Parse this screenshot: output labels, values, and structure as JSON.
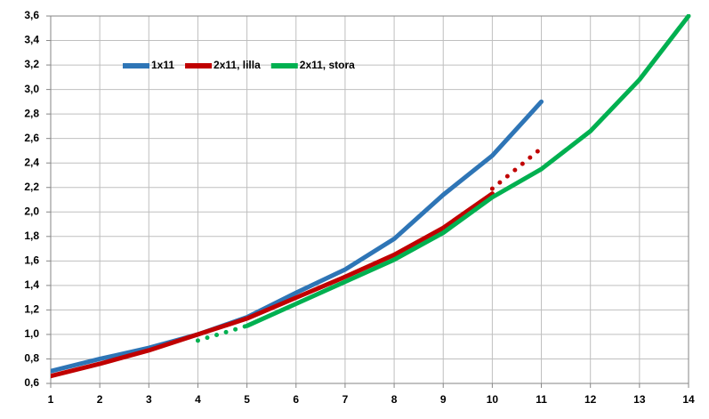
{
  "chart_data": {
    "type": "line",
    "x": [
      1,
      2,
      3,
      4,
      5,
      6,
      7,
      8,
      9,
      10,
      11,
      12,
      13,
      14
    ],
    "xlim": [
      1,
      14
    ],
    "xticks": [
      1,
      2,
      3,
      4,
      5,
      6,
      7,
      8,
      9,
      10,
      11,
      12,
      13,
      14
    ],
    "ylim": [
      0.6,
      3.6
    ],
    "yticks": [
      {
        "value": 0.6,
        "label": "0,6"
      },
      {
        "value": 0.8,
        "label": "0,8"
      },
      {
        "value": 1.0,
        "label": "1,0"
      },
      {
        "value": 1.2,
        "label": "1,2"
      },
      {
        "value": 1.4,
        "label": "1,4"
      },
      {
        "value": 1.6,
        "label": "1,6"
      },
      {
        "value": 1.8,
        "label": "1,8"
      },
      {
        "value": 2.0,
        "label": "2,0"
      },
      {
        "value": 2.2,
        "label": "2,2"
      },
      {
        "value": 2.4,
        "label": "2,4"
      },
      {
        "value": 2.6,
        "label": "2,6"
      },
      {
        "value": 2.8,
        "label": "2,8"
      },
      {
        "value": 3.0,
        "label": "3,0"
      },
      {
        "value": 3.2,
        "label": "3,2"
      },
      {
        "value": 3.4,
        "label": "3,4"
      },
      {
        "value": 3.6,
        "label": "3,6"
      }
    ],
    "grid": true,
    "legend": "upper left",
    "series": [
      {
        "name": "1x11",
        "color": "#2e75b6",
        "dash": "solid",
        "values": [
          0.7,
          0.8,
          0.89,
          1.0,
          1.14,
          1.34,
          1.53,
          1.78,
          2.14,
          2.46,
          2.9,
          null,
          null,
          null
        ]
      },
      {
        "name": "2x11, lilla",
        "color": "#c00000",
        "dash": "solid",
        "values": [
          0.66,
          0.76,
          0.87,
          1.0,
          1.13,
          1.3,
          1.47,
          1.65,
          1.87,
          2.15,
          null,
          null,
          null,
          null
        ]
      },
      {
        "name": "2x11, stora",
        "color": "#00b050",
        "dash": "solid",
        "values": [
          null,
          null,
          null,
          null,
          1.07,
          1.25,
          1.43,
          1.61,
          1.83,
          2.12,
          2.35,
          2.66,
          3.08,
          3.6
        ]
      },
      {
        "color": "#c00000",
        "dash": "dotted",
        "values": [
          null,
          null,
          null,
          null,
          null,
          null,
          null,
          null,
          null,
          2.19,
          2.52,
          null,
          null,
          null
        ]
      },
      {
        "color": "#00b050",
        "dash": "dotted",
        "values": [
          null,
          null,
          null,
          0.95,
          1.07,
          null,
          null,
          null,
          null,
          null,
          null,
          null,
          null,
          null
        ]
      }
    ]
  }
}
